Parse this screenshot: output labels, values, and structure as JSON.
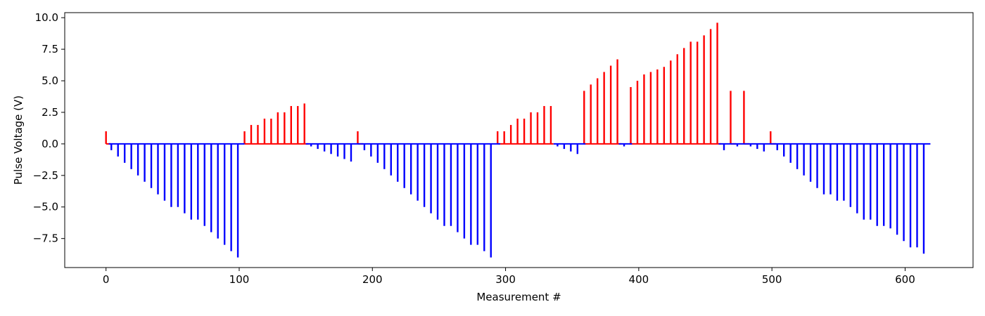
{
  "chart_data": {
    "type": "bar",
    "title": "",
    "xlabel": "Measurement #",
    "ylabel": "Pulse Voltage (V)",
    "xlim": [
      -31,
      651
    ],
    "ylim": [
      -9.8,
      10.4
    ],
    "xticks": [
      0,
      100,
      200,
      300,
      400,
      500,
      600
    ],
    "yticks": [
      -7.5,
      -5.0,
      -2.5,
      0.0,
      2.5,
      5.0,
      7.5,
      10.0
    ],
    "ytick_labels": [
      "−7.5",
      "−5.0",
      "−2.5",
      "0.0",
      "2.5",
      "5.0",
      "7.5",
      "10.0"
    ],
    "grid": false,
    "colors": {
      "positive": "#ff0000",
      "negative": "#0000ff"
    },
    "series": [
      {
        "color": "#ff0000",
        "segments": [
          [
            0,
            4
          ],
          [
            104,
            152
          ],
          [
            189,
            193
          ],
          [
            294,
            336
          ],
          [
            359,
            387
          ],
          [
            393,
            462
          ],
          [
            469,
            473
          ],
          [
            479,
            483
          ],
          [
            499,
            503
          ]
        ],
        "pulses": [
          [
            0,
            1.0
          ],
          [
            104,
            1.0
          ],
          [
            109,
            1.5
          ],
          [
            114,
            1.5
          ],
          [
            119,
            2.0
          ],
          [
            124,
            2.0
          ],
          [
            129,
            2.5
          ],
          [
            134,
            2.5
          ],
          [
            139,
            3.0
          ],
          [
            144,
            3.0
          ],
          [
            149,
            3.2
          ],
          [
            189,
            1.0
          ],
          [
            294,
            1.0
          ],
          [
            299,
            1.0
          ],
          [
            304,
            1.5
          ],
          [
            309,
            2.0
          ],
          [
            314,
            2.0
          ],
          [
            319,
            2.5
          ],
          [
            324,
            2.5
          ],
          [
            329,
            3.0
          ],
          [
            334,
            3.0
          ],
          [
            359,
            4.2
          ],
          [
            364,
            4.7
          ],
          [
            369,
            5.2
          ],
          [
            374,
            5.7
          ],
          [
            379,
            6.2
          ],
          [
            384,
            6.7
          ],
          [
            394,
            4.5
          ],
          [
            399,
            5.0
          ],
          [
            404,
            5.5
          ],
          [
            409,
            5.7
          ],
          [
            414,
            5.9
          ],
          [
            419,
            6.1
          ],
          [
            424,
            6.6
          ],
          [
            429,
            7.1
          ],
          [
            434,
            7.6
          ],
          [
            439,
            8.1
          ],
          [
            444,
            8.1
          ],
          [
            449,
            8.6
          ],
          [
            454,
            9.1
          ],
          [
            459,
            9.6
          ],
          [
            469,
            4.2
          ],
          [
            479,
            4.2
          ],
          [
            499,
            1.0
          ]
        ]
      },
      {
        "color": "#0000ff",
        "segments": [
          [
            2,
            104
          ],
          [
            150,
            191
          ],
          [
            191,
            296
          ],
          [
            336,
            360
          ],
          [
            385,
            395
          ],
          [
            460,
            470
          ],
          [
            470,
            481
          ],
          [
            481,
            500
          ],
          [
            500,
            619
          ]
        ],
        "pulses": [
          [
            4,
            -0.5
          ],
          [
            9,
            -1.0
          ],
          [
            14,
            -1.5
          ],
          [
            19,
            -2.0
          ],
          [
            24,
            -2.5
          ],
          [
            29,
            -3.0
          ],
          [
            34,
            -3.5
          ],
          [
            39,
            -4.0
          ],
          [
            44,
            -4.5
          ],
          [
            49,
            -5.0
          ],
          [
            54,
            -5.0
          ],
          [
            59,
            -5.5
          ],
          [
            64,
            -6.0
          ],
          [
            69,
            -6.0
          ],
          [
            74,
            -6.5
          ],
          [
            79,
            -7.0
          ],
          [
            84,
            -7.5
          ],
          [
            89,
            -8.0
          ],
          [
            94,
            -8.5
          ],
          [
            99,
            -9.0
          ],
          [
            154,
            -0.2
          ],
          [
            159,
            -0.4
          ],
          [
            164,
            -0.6
          ],
          [
            169,
            -0.8
          ],
          [
            174,
            -1.0
          ],
          [
            179,
            -1.2
          ],
          [
            184,
            -1.4
          ],
          [
            194,
            -0.5
          ],
          [
            199,
            -1.0
          ],
          [
            204,
            -1.5
          ],
          [
            209,
            -2.0
          ],
          [
            214,
            -2.5
          ],
          [
            219,
            -3.0
          ],
          [
            224,
            -3.5
          ],
          [
            229,
            -4.0
          ],
          [
            234,
            -4.5
          ],
          [
            239,
            -5.0
          ],
          [
            244,
            -5.5
          ],
          [
            249,
            -6.0
          ],
          [
            254,
            -6.5
          ],
          [
            259,
            -6.5
          ],
          [
            264,
            -7.0
          ],
          [
            269,
            -7.5
          ],
          [
            274,
            -8.0
          ],
          [
            279,
            -8.0
          ],
          [
            284,
            -8.5
          ],
          [
            289,
            -9.0
          ],
          [
            339,
            -0.2
          ],
          [
            344,
            -0.4
          ],
          [
            349,
            -0.6
          ],
          [
            354,
            -0.8
          ],
          [
            389,
            -0.2
          ],
          [
            464,
            -0.5
          ],
          [
            474,
            -0.2
          ],
          [
            484,
            -0.2
          ],
          [
            489,
            -0.4
          ],
          [
            494,
            -0.6
          ],
          [
            504,
            -0.5
          ],
          [
            509,
            -1.0
          ],
          [
            514,
            -1.5
          ],
          [
            519,
            -2.0
          ],
          [
            524,
            -2.5
          ],
          [
            529,
            -3.0
          ],
          [
            534,
            -3.5
          ],
          [
            539,
            -4.0
          ],
          [
            544,
            -4.0
          ],
          [
            549,
            -4.5
          ],
          [
            554,
            -4.5
          ],
          [
            559,
            -5.0
          ],
          [
            564,
            -5.5
          ],
          [
            569,
            -6.0
          ],
          [
            574,
            -6.0
          ],
          [
            579,
            -6.5
          ],
          [
            584,
            -6.5
          ],
          [
            589,
            -6.7
          ],
          [
            594,
            -7.2
          ],
          [
            599,
            -7.7
          ],
          [
            604,
            -8.2
          ],
          [
            609,
            -8.2
          ],
          [
            614,
            -8.7
          ]
        ]
      }
    ]
  }
}
